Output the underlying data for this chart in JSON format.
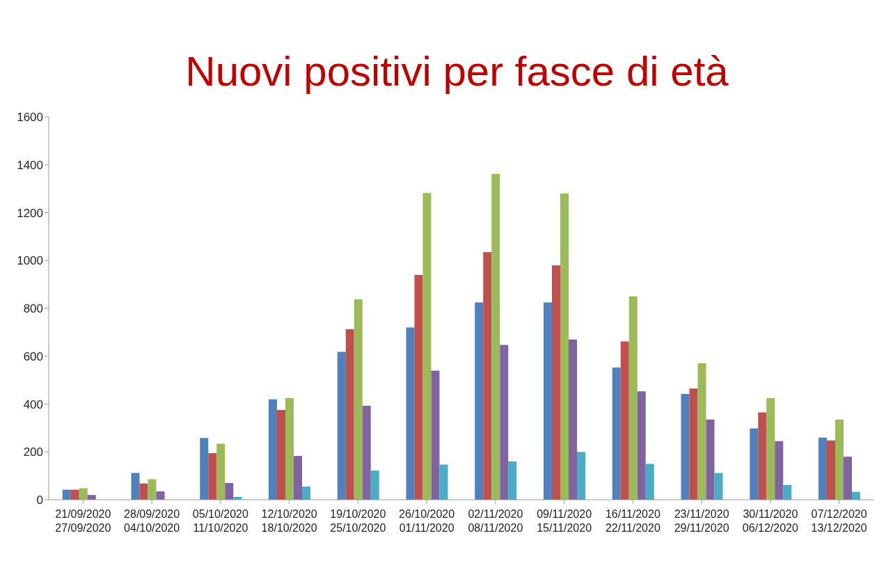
{
  "chart_data": {
    "type": "bar",
    "title": "Nuovi positivi per fasce di età",
    "categories": [
      "21/09/2020\n27/09/2020",
      "28/09/2020\n04/10/2020",
      "05/10/2020\n11/10/2020",
      "12/10/2020\n18/10/2020",
      "19/10/2020\n25/10/2020",
      "26/10/2020\n01/11/2020",
      "02/11/2020\n08/11/2020",
      "09/11/2020\n15/11/2020",
      "16/11/2020\n22/11/2020",
      "23/11/2020\n29/11/2020",
      "30/11/2020\n06/12/2020",
      "07/12/2020\n13/12/2020"
    ],
    "series": [
      {
        "color": "#4f81bd",
        "values": [
          42,
          112,
          258,
          420,
          618,
          720,
          825,
          825,
          553,
          442,
          298,
          260
        ]
      },
      {
        "color": "#c0504d",
        "values": [
          42,
          68,
          195,
          375,
          713,
          940,
          1035,
          980,
          662,
          465,
          365,
          248
        ]
      },
      {
        "color": "#9bbb59",
        "values": [
          48,
          86,
          234,
          425,
          838,
          1282,
          1362,
          1280,
          850,
          570,
          425,
          335
        ]
      },
      {
        "color": "#8064a2",
        "values": [
          20,
          35,
          70,
          183,
          393,
          540,
          647,
          670,
          453,
          335,
          245,
          180
        ]
      },
      {
        "color": "#4bacc6",
        "values": [
          null,
          null,
          12,
          55,
          122,
          147,
          160,
          200,
          150,
          112,
          62,
          33
        ]
      }
    ],
    "ylim": [
      0,
      1600
    ],
    "yticks": [
      0,
      200,
      400,
      600,
      800,
      1000,
      1200,
      1400,
      1600
    ],
    "grid": false,
    "legend": false
  }
}
